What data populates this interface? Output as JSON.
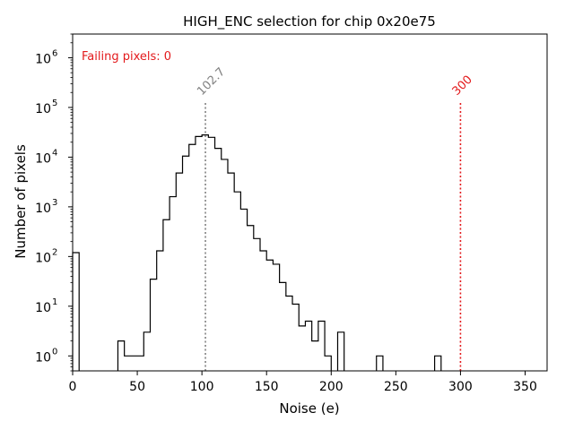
{
  "chart_data": {
    "type": "histogram",
    "title": "HIGH_ENC selection for chip 0x20e75",
    "xlabel": "Noise (e)",
    "ylabel": "Number of pixels",
    "xlim": [
      0,
      367
    ],
    "ylim": [
      0.5,
      3000000
    ],
    "yscale": "log",
    "bin_width": 5,
    "grid": false,
    "x_ticks": [
      0,
      50,
      100,
      150,
      200,
      250,
      300,
      350
    ],
    "x_tick_labels": [
      "0",
      "50",
      "100",
      "150",
      "200",
      "250",
      "300",
      "350"
    ],
    "y_ticks": [
      {
        "value": 1,
        "exp": "0"
      },
      {
        "value": 10,
        "exp": "1"
      },
      {
        "value": 100,
        "exp": "2"
      },
      {
        "value": 1000,
        "exp": "3"
      },
      {
        "value": 10000,
        "exp": "4"
      },
      {
        "value": 100000,
        "exp": "5"
      },
      {
        "value": 1000000,
        "exp": "6"
      }
    ],
    "y_tick_base": "10",
    "bins": [
      {
        "x": 0,
        "count": 120
      },
      {
        "x": 35,
        "count": 2
      },
      {
        "x": 40,
        "count": 1
      },
      {
        "x": 45,
        "count": 1
      },
      {
        "x": 50,
        "count": 1
      },
      {
        "x": 55,
        "count": 3
      },
      {
        "x": 60,
        "count": 35
      },
      {
        "x": 65,
        "count": 130
      },
      {
        "x": 70,
        "count": 550
      },
      {
        "x": 75,
        "count": 1600
      },
      {
        "x": 80,
        "count": 4800
      },
      {
        "x": 85,
        "count": 10500
      },
      {
        "x": 90,
        "count": 18000
      },
      {
        "x": 95,
        "count": 26000
      },
      {
        "x": 100,
        "count": 28000
      },
      {
        "x": 105,
        "count": 25000
      },
      {
        "x": 110,
        "count": 15000
      },
      {
        "x": 115,
        "count": 9000
      },
      {
        "x": 120,
        "count": 4800
      },
      {
        "x": 125,
        "count": 2000
      },
      {
        "x": 130,
        "count": 900
      },
      {
        "x": 135,
        "count": 420
      },
      {
        "x": 140,
        "count": 230
      },
      {
        "x": 145,
        "count": 130
      },
      {
        "x": 150,
        "count": 85
      },
      {
        "x": 155,
        "count": 70
      },
      {
        "x": 160,
        "count": 30
      },
      {
        "x": 165,
        "count": 16
      },
      {
        "x": 170,
        "count": 11
      },
      {
        "x": 175,
        "count": 4
      },
      {
        "x": 180,
        "count": 5
      },
      {
        "x": 185,
        "count": 2
      },
      {
        "x": 190,
        "count": 5
      },
      {
        "x": 195,
        "count": 1
      },
      {
        "x": 205,
        "count": 3
      },
      {
        "x": 235,
        "count": 1
      },
      {
        "x": 280,
        "count": 1
      }
    ],
    "reference_lines": [
      {
        "x": 102.7,
        "label": "102.7",
        "color": "#808080",
        "name": "mean-noise-line"
      },
      {
        "x": 300,
        "label": "300",
        "color": "#e31a1c",
        "name": "threshold-line"
      }
    ],
    "annotation": {
      "text": "Failing pixels: 0",
      "color": "#e31a1c"
    }
  }
}
